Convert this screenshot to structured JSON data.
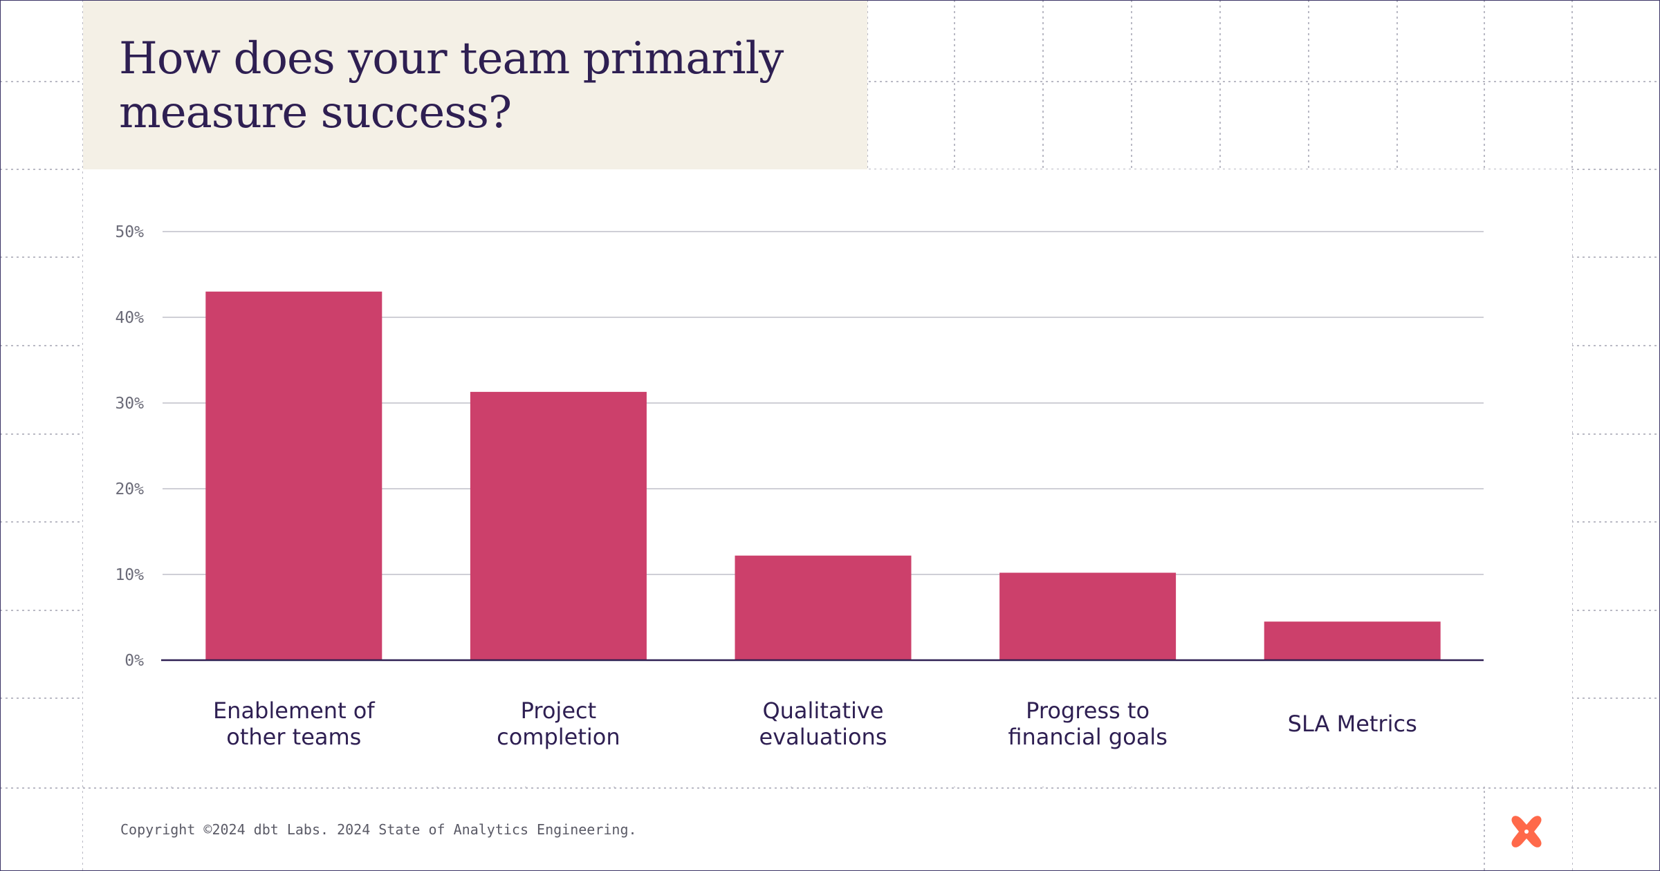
{
  "title": "How does your team primarily measure success?",
  "footer": {
    "copyright": "Copyright ©2024 dbt Labs. 2024 State of Analytics Engineering."
  },
  "logo": {
    "icon": "dbt-logo-icon",
    "color": "#ff694a"
  },
  "colors": {
    "bar": "#cc406b",
    "title": "#2e1f52",
    "axis_text": "#6b6b78",
    "category_text": "#2e1f52",
    "gridline": "#cfcfd6",
    "baseline": "#2e1f52"
  },
  "chart_data": {
    "type": "bar",
    "categories": [
      [
        "Enablement of",
        "other teams"
      ],
      [
        "Project",
        "completion"
      ],
      [
        "Qualitative",
        "evaluations"
      ],
      [
        "Progress to",
        "financial goals"
      ],
      [
        "SLA Metrics"
      ]
    ],
    "values": [
      43,
      31.3,
      12.2,
      10.2,
      4.5
    ],
    "ylim": [
      0,
      50
    ],
    "yticks": [
      0,
      10,
      20,
      30,
      40,
      50
    ],
    "ytick_labels": [
      "0%",
      "10%",
      "20%",
      "30%",
      "40%",
      "50%"
    ],
    "grid": true,
    "legend": "none",
    "title": "How does your team primarily measure success?",
    "xlabel": "",
    "ylabel": ""
  }
}
